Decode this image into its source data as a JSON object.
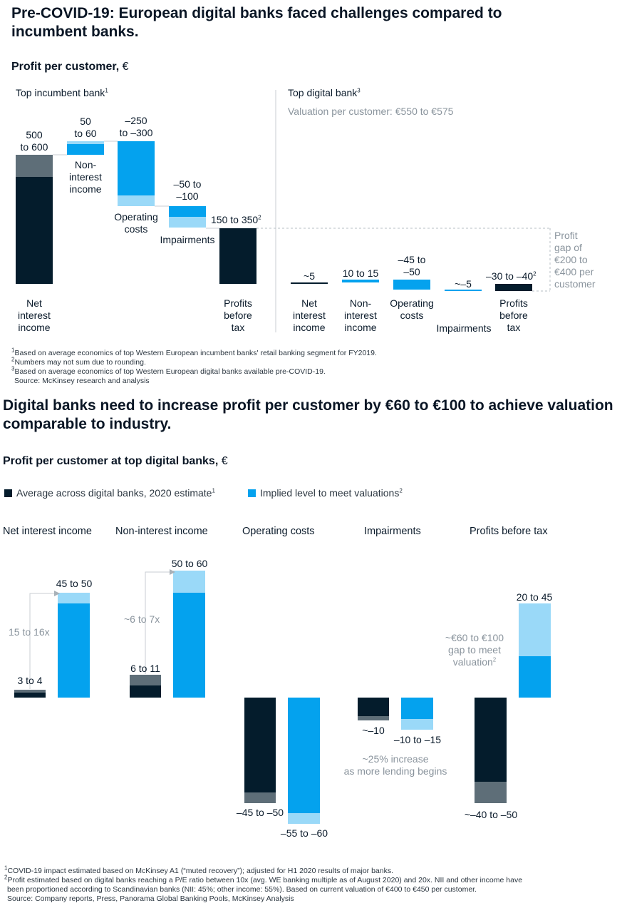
{
  "colors": {
    "navy": "#041C2C",
    "slate": "#5E6E78",
    "blue": "#04A2EE",
    "lightblue": "#9AD9F8",
    "grey_text": "#8a949d"
  },
  "chart_data": [
    {
      "type": "bar",
      "subtype": "waterfall",
      "title": "Pre-COVID-19: European digital banks faced challenges compared to incumbent banks.",
      "subtitle": "Profit per customer, €",
      "panels": [
        {
          "name": "Top incumbent bank",
          "note": "1",
          "steps": [
            {
              "category": "Net interest income",
              "range": [
                500,
                600
              ],
              "label": "500 to 600",
              "kind": "total"
            },
            {
              "category": "Non-interest income",
              "range": [
                50,
                60
              ],
              "label": "50 to 60",
              "kind": "increase"
            },
            {
              "category": "Operating costs",
              "range": [
                -250,
                -300
              ],
              "label": "–250 to –300",
              "kind": "decrease"
            },
            {
              "category": "Impairments",
              "range": [
                -50,
                -100
              ],
              "label": "–50 to –100",
              "kind": "decrease"
            },
            {
              "category": "Profits before tax",
              "range": [
                150,
                350
              ],
              "label": "150 to 350",
              "note": "2",
              "kind": "total"
            }
          ]
        },
        {
          "name": "Top digital bank",
          "note": "3",
          "valuation_text": "Valuation per customer: €550 to €575",
          "steps": [
            {
              "category": "Net interest income",
              "value": 5,
              "label": "~5",
              "kind": "total"
            },
            {
              "category": "Non-interest income",
              "range": [
                10,
                15
              ],
              "label": "10 to 15",
              "kind": "increase"
            },
            {
              "category": "Operating costs",
              "range": [
                -45,
                -50
              ],
              "label": "–45 to –50",
              "kind": "decrease"
            },
            {
              "category": "Impairments",
              "value": -5,
              "label": "~–5",
              "kind": "decrease"
            },
            {
              "category": "Profits before tax",
              "range": [
                -30,
                -40
              ],
              "label": "–30 to –40",
              "note": "2",
              "kind": "total"
            }
          ],
          "annotation": "Profit gap of €200 to €400 per customer"
        }
      ],
      "footnotes": [
        "Based on average economics of top Western European incumbent banks' retail banking segment for FY2019.",
        "Numbers may not sum due to rounding.",
        "Based on average economics of top Western European digital banks available pre-COVID-19."
      ],
      "source": "Source: McKinsey research and analysis"
    },
    {
      "type": "bar",
      "title": "Digital banks need to increase profit per customer by €60 to €100 to achieve valuation comparable to industry.",
      "subtitle": "Profit per customer at top digital banks, €",
      "legend": [
        {
          "name": "Average across digital banks, 2020 estimate",
          "note": "1"
        },
        {
          "name": "Implied level to meet valuations",
          "note": "2"
        }
      ],
      "legend_position": "top-left",
      "groups": [
        {
          "category": "Net interest income",
          "series": [
            {
              "range": [
                3,
                4
              ],
              "label": "3 to 4"
            },
            {
              "range": [
                45,
                50
              ],
              "label": "45 to 50"
            }
          ],
          "annotation": "15 to 16x"
        },
        {
          "category": "Non-interest income",
          "series": [
            {
              "range": [
                6,
                11
              ],
              "label": "6 to 11"
            },
            {
              "range": [
                50,
                60
              ],
              "label": "50 to 60"
            }
          ],
          "annotation": "~6 to 7x"
        },
        {
          "category": "Operating costs",
          "series": [
            {
              "range": [
                -45,
                -50
              ],
              "label": "–45 to –50"
            },
            {
              "range": [
                -55,
                -60
              ],
              "label": "–55 to –60"
            }
          ]
        },
        {
          "category": "Impairments",
          "series": [
            {
              "value": -10,
              "label": "~–10"
            },
            {
              "range": [
                -10,
                -15
              ],
              "label": "–10 to –15"
            }
          ],
          "annotation": "~25% increase as more lending begins"
        },
        {
          "category": "Profits before tax",
          "series": [
            {
              "range": [
                -40,
                -50
              ],
              "label": "~–40 to –50"
            },
            {
              "range": [
                20,
                45
              ],
              "label": "20 to 45"
            }
          ],
          "annotation": "~€60 to €100 gap to meet valuation"
        }
      ],
      "footnotes": [
        "COVID-19 impact estimated based on McKinsey A1 (“muted recovery”); adjusted for H1 2020 results of major banks.",
        "Profit estimated based on digital banks reaching a P/E ratio between 10x (avg. WE banking multiple as of August 2020) and 20x. NII and other income have been proportioned according to Scandinavian banks (NII: 45%; other income: 55%). Based on current valuation of €400 to €450 per customer."
      ],
      "source": "Source: Company reports, Press, Panorama Global Banking Pools, McKinsey Analysis"
    }
  ],
  "text": {
    "title1": "Pre-COVID-19: European digital banks faced challenges compared to incumbent banks.",
    "subtitle1": "Profit per customer,",
    "unit": "€",
    "panel_left": "Top incumbent bank",
    "panel_right": "Top digital bank",
    "valuation": "Valuation per customer: €550 to €575",
    "inc_vals": [
      "500\nto 600",
      "50\nto 60",
      "–250\nto –300",
      "–50 to\n–100",
      "150 to 350"
    ],
    "inc_cats": [
      "Net\ninterest\nincome",
      "Non-\ninterest\nincome",
      "Operating\ncosts",
      "Impairments",
      "Profits\nbefore\ntax"
    ],
    "dig_vals": [
      "~5",
      "10 to 15",
      "–45 to\n–50",
      "~–5",
      "–30 to –40"
    ],
    "dig_cats": [
      "Net\ninterest\nincome",
      "Non-\ninterest\nincome",
      "Operating\ncosts",
      "Impairments",
      "Profits\nbefore\ntax"
    ],
    "gap": "Profit\ngap of\n€200 to\n€400 per\ncustomer",
    "fn1": [
      "Based on average economics of top Western European incumbent banks' retail banking segment for FY2019.",
      "Numbers may not sum due to rounding.",
      "Based on average economics of top Western European digital banks available pre-COVID-19.",
      "Source: McKinsey research and analysis"
    ],
    "title2": "Digital banks need to increase profit per customer by €60 to €100 to achieve valuation comparable to industry.",
    "subtitle2": "Profit per customer at top digital banks,",
    "legend1": "Average across digital banks, 2020 estimate",
    "legend2": "Implied level to meet valuations",
    "groups": [
      "Net interest income",
      "Non-interest income",
      "Operating costs",
      "Impairments",
      "Profits before tax"
    ],
    "b2_vals": [
      "3 to 4",
      "45 to 50",
      "6 to 11",
      "50 to 60",
      "–45 to –50",
      "–55 to –60",
      "~–10",
      "–10 to –15",
      "~–40 to –50",
      "20 to 45"
    ],
    "ann_nii": "15 to 16x",
    "ann_noni": "~6 to 7x",
    "ann_imp": "~25% increase\nas more lending begins",
    "ann_pbt": "~€60 to €100\ngap to meet\nvaluation",
    "fn2": [
      "COVID-19 impact estimated based on McKinsey A1 (“muted recovery”); adjusted for H1 2020 results of major banks.",
      "Profit estimated based on digital banks reaching a P/E ratio between 10x (avg. WE banking multiple as of August 2020) and 20x. NII and other income have",
      "been proportioned according to Scandinavian banks (NII: 45%; other income: 55%). Based on current valuation of €400 to €450 per customer.",
      "Source: Company reports, Press, Panorama Global Banking Pools, McKinsey Analysis"
    ]
  }
}
